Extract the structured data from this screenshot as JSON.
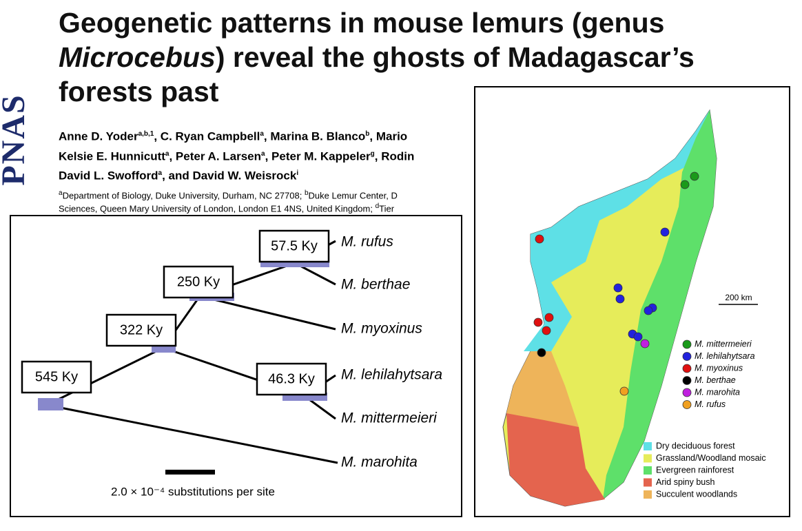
{
  "header": {
    "logo": "PNAS",
    "title": {
      "line1": "Geogenetic patterns in mouse lemurs (genus",
      "italic": "Microcebus",
      "line2_rest": ") reveal the ghosts of Madagascar’s",
      "line3": "forests past"
    },
    "authors": [
      [
        {
          "text": "Anne D. Yoder",
          "sup": "a,b,1"
        },
        {
          "text": ", C. Ryan Campbell",
          "sup": "a"
        },
        {
          "text": ", Marina B. Blanco",
          "sup": "b"
        },
        {
          "text": ", Mario"
        }
      ],
      [
        {
          "text": "Kelsie E. Hunnicutt",
          "sup": "a"
        },
        {
          "text": ", Peter A. Larsen",
          "sup": "a"
        },
        {
          "text": ", Peter M. Kappeler",
          "sup": "g"
        },
        {
          "text": ", Rodin"
        }
      ],
      [
        {
          "text": "David L. Swofford",
          "sup": "a"
        },
        {
          "text": ", and David W. Weisrock",
          "sup": "i"
        }
      ]
    ],
    "affiliations": [
      [
        {
          "sup": "a"
        },
        {
          "text": "Department of Biology, Duke University, Durham, NC 27708; "
        },
        {
          "sup": "b"
        },
        {
          "text": "Duke Lemur Center, D"
        }
      ],
      [
        {
          "text": "Sciences, Queen Mary University of London, London E1 4NS, United Kingdom; "
        },
        {
          "sup": "d"
        },
        {
          "text": "Tier"
        }
      ]
    ]
  },
  "tree": {
    "nodes": [
      "545 Ky",
      "322 Ky",
      "250 Ky",
      "57.5 Ky",
      "46.3 Ky"
    ],
    "tips": [
      "M. rufus",
      "M. berthae",
      "M. myoxinus",
      "M. lehilahytsara",
      "M. mittermeieri",
      "M. marohita"
    ],
    "scale_label": "2.0 × 10⁻⁴ substitutions per site"
  },
  "map": {
    "scale_label": "200 km",
    "species": [
      {
        "name": "M. mittermeieri",
        "color": "#1a9a1a"
      },
      {
        "name": "M. lehilahytsara",
        "color": "#2222dd"
      },
      {
        "name": "M. myoxinus",
        "color": "#e01010"
      },
      {
        "name": "M. berthae",
        "color": "#000000"
      },
      {
        "name": "M. marohita",
        "color": "#c020e0"
      },
      {
        "name": "M. rufus",
        "color": "#f0a020"
      }
    ],
    "habitats": [
      {
        "name": "Dry deciduous forest",
        "color": "#5ee0e6"
      },
      {
        "name": "Grassland/Woodland mosaic",
        "color": "#e6ec5a"
      },
      {
        "name": "Evergreen rainforest",
        "color": "#5ee06a"
      },
      {
        "name": "Arid spiny bush",
        "color": "#e4644e"
      },
      {
        "name": "Succulent woodlands",
        "color": "#eeb45a"
      }
    ]
  }
}
